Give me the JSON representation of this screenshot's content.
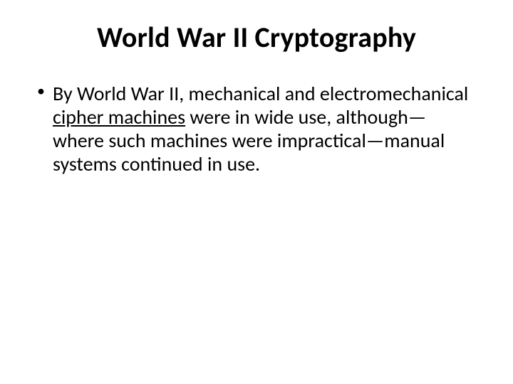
{
  "slide": {
    "title": "World War II Cryptography",
    "bullet1_part1": "By World War II, mechanical and electromechanical ",
    "bullet1_underlined": "cipher machines",
    "bullet1_part2": " were in wide use, although—where such machines were impractical—manual systems continued in use."
  },
  "styling": {
    "background_color": "#ffffff",
    "text_color": "#000000",
    "title_fontsize": 40,
    "title_weight": 700,
    "body_fontsize": 28,
    "body_weight": 400,
    "font_family": "Calibri"
  }
}
